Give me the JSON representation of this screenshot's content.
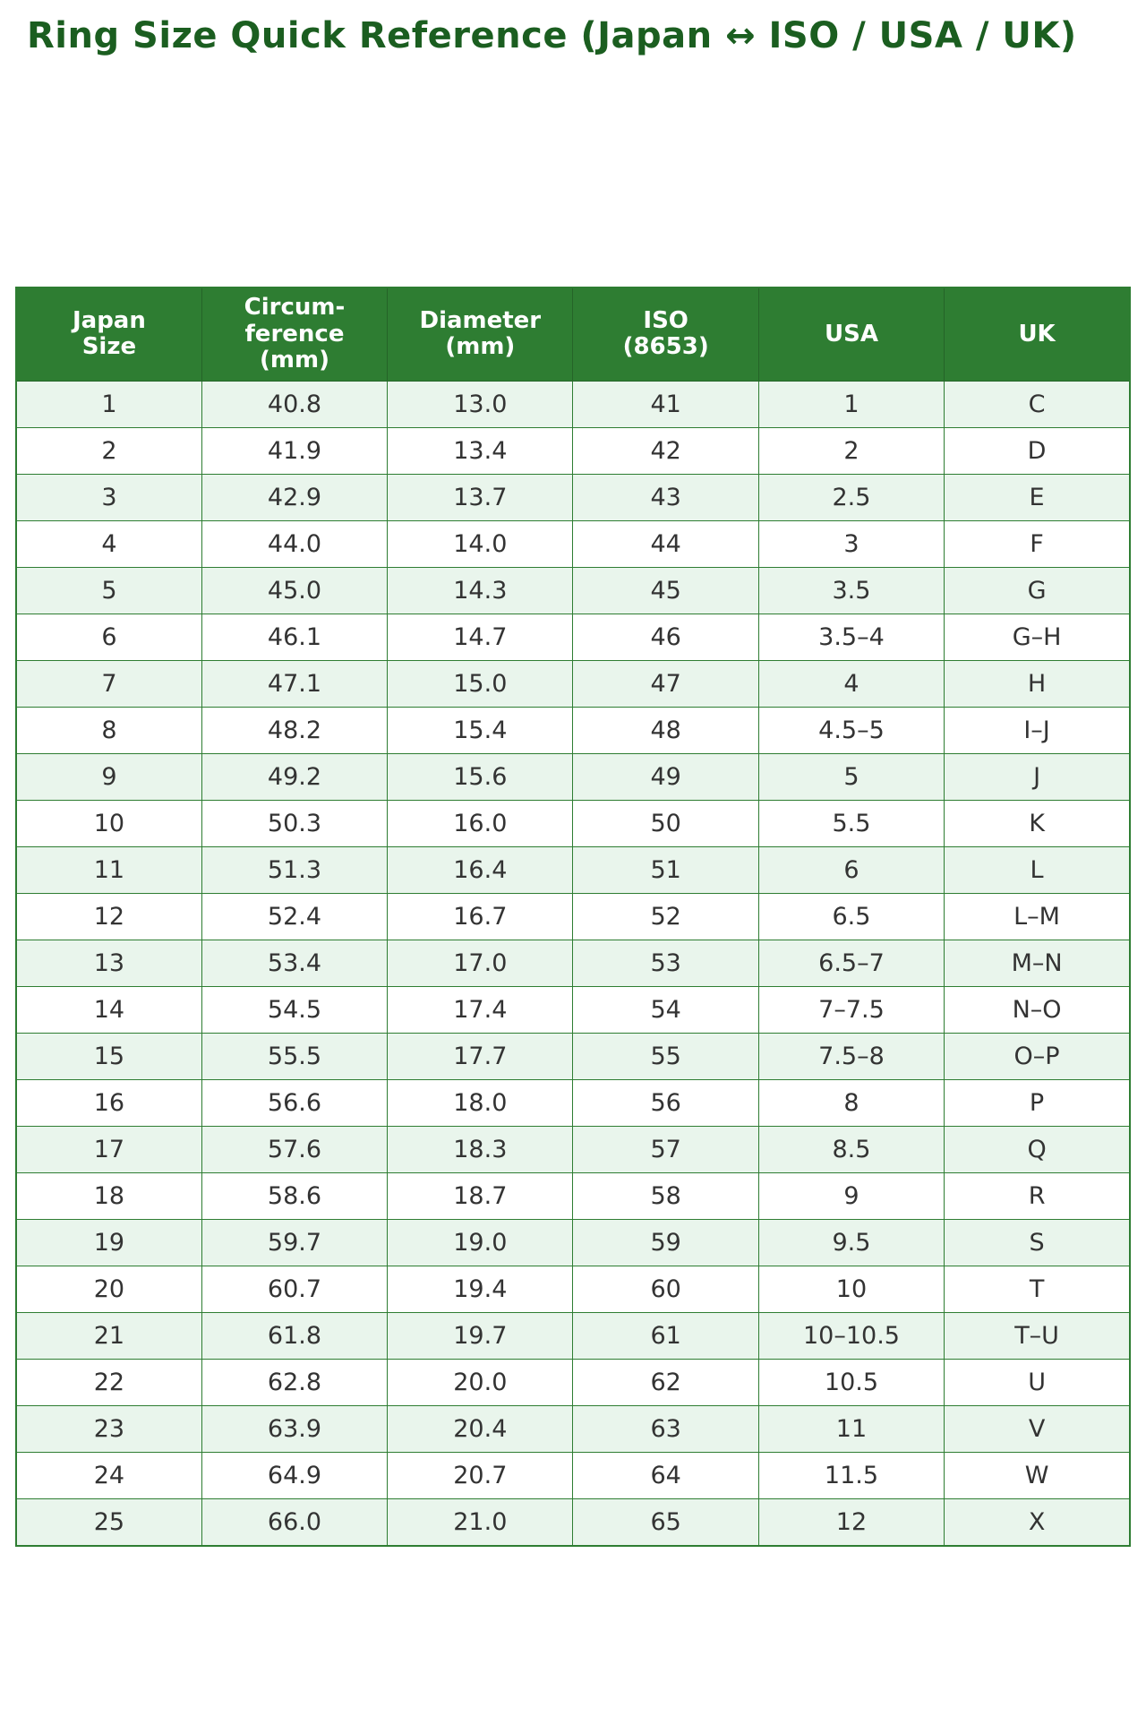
{
  "page": {
    "title": "Ring Size Quick Reference (Japan ↔ ISO / USA / UK)"
  },
  "colors": {
    "title_text": "#1b5e20",
    "header_bg": "#2e7d32",
    "header_text": "#ffffff",
    "row_alt_bg": "#e9f5ec",
    "row_bg": "#ffffff",
    "grid_border": "#2e7d32",
    "body_text": "#333333"
  },
  "table": {
    "header_keys": [
      "japan-size",
      "circumference-mm",
      "diameter-mm",
      "iso-8653",
      "usa",
      "uk"
    ],
    "headers": [
      "Japan\nSize",
      "Circum-\nference\n(mm)",
      "Diameter\n(mm)",
      "ISO\n(8653)",
      "USA",
      "UK"
    ],
    "rows": [
      [
        "1",
        "40.8",
        "13.0",
        "41",
        "1",
        "C"
      ],
      [
        "2",
        "41.9",
        "13.4",
        "42",
        "2",
        "D"
      ],
      [
        "3",
        "42.9",
        "13.7",
        "43",
        "2.5",
        "E"
      ],
      [
        "4",
        "44.0",
        "14.0",
        "44",
        "3",
        "F"
      ],
      [
        "5",
        "45.0",
        "14.3",
        "45",
        "3.5",
        "G"
      ],
      [
        "6",
        "46.1",
        "14.7",
        "46",
        "3.5–4",
        "G–H"
      ],
      [
        "7",
        "47.1",
        "15.0",
        "47",
        "4",
        "H"
      ],
      [
        "8",
        "48.2",
        "15.4",
        "48",
        "4.5–5",
        "I–J"
      ],
      [
        "9",
        "49.2",
        "15.6",
        "49",
        "5",
        "J"
      ],
      [
        "10",
        "50.3",
        "16.0",
        "50",
        "5.5",
        "K"
      ],
      [
        "11",
        "51.3",
        "16.4",
        "51",
        "6",
        "L"
      ],
      [
        "12",
        "52.4",
        "16.7",
        "52",
        "6.5",
        "L–M"
      ],
      [
        "13",
        "53.4",
        "17.0",
        "53",
        "6.5–7",
        "M–N"
      ],
      [
        "14",
        "54.5",
        "17.4",
        "54",
        "7–7.5",
        "N–O"
      ],
      [
        "15",
        "55.5",
        "17.7",
        "55",
        "7.5–8",
        "O–P"
      ],
      [
        "16",
        "56.6",
        "18.0",
        "56",
        "8",
        "P"
      ],
      [
        "17",
        "57.6",
        "18.3",
        "57",
        "8.5",
        "Q"
      ],
      [
        "18",
        "58.6",
        "18.7",
        "58",
        "9",
        "R"
      ],
      [
        "19",
        "59.7",
        "19.0",
        "59",
        "9.5",
        "S"
      ],
      [
        "20",
        "60.7",
        "19.4",
        "60",
        "10",
        "T"
      ],
      [
        "21",
        "61.8",
        "19.7",
        "61",
        "10–10.5",
        "T–U"
      ],
      [
        "22",
        "62.8",
        "20.0",
        "62",
        "10.5",
        "U"
      ],
      [
        "23",
        "63.9",
        "20.4",
        "63",
        "11",
        "V"
      ],
      [
        "24",
        "64.9",
        "20.7",
        "64",
        "11.5",
        "W"
      ],
      [
        "25",
        "66.0",
        "21.0",
        "65",
        "12",
        "X"
      ]
    ]
  }
}
